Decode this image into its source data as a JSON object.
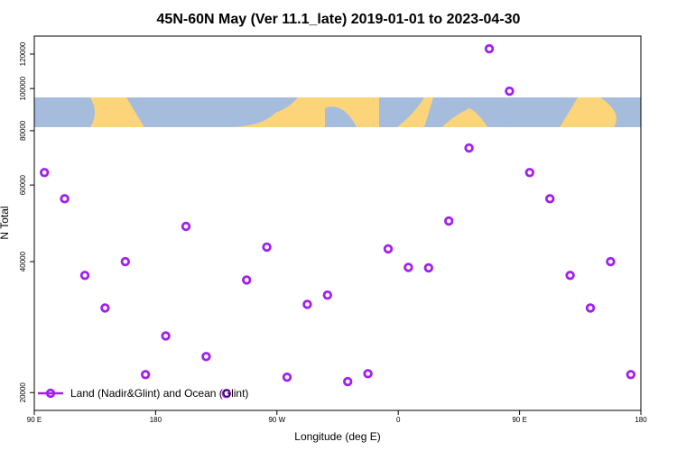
{
  "chart_data": {
    "type": "scatter",
    "title": "45N-60N May (Ver 11.1_late)   2019-01-01 to 2023-04-30",
    "x_label": "Longitude (deg E)",
    "y_label": "N Total",
    "log_y": true,
    "legend": "bottom-left",
    "xlim": [
      90,
      540
    ],
    "xticks": [
      {
        "value": 90,
        "label": "90 E"
      },
      {
        "value": 180,
        "label": "180"
      },
      {
        "value": 270,
        "label": "90 W"
      },
      {
        "value": 360,
        "label": "0"
      },
      {
        "value": 450,
        "label": "90 E"
      },
      {
        "value": 540,
        "label": "180"
      }
    ],
    "ylim": [
      18200,
      132000
    ],
    "yticks": [
      20000,
      40000,
      60000,
      80000,
      100000,
      120000
    ],
    "series": [
      {
        "name": "Land (Nadir&Glint) and Ocean (Glint)",
        "color": "#a020f0",
        "x": [
          97.5,
          112.5,
          127.5,
          142.5,
          157.5,
          172.5,
          187.5,
          202.5,
          217.5,
          232.5,
          247.5,
          262.5,
          277.5,
          292.5,
          307.5,
          322.5,
          337.5,
          352.5,
          367.5,
          382.5,
          397.5,
          412.5,
          427.5,
          442.5,
          457.5,
          472.5,
          487.5,
          502.5,
          517.5,
          532.5
        ],
        "values": [
          64100,
          55800,
          37200,
          31300,
          40000,
          22000,
          27000,
          48200,
          24200,
          19900,
          36300,
          43200,
          21700,
          31900,
          33500,
          21200,
          22100,
          42800,
          38800,
          38700,
          49600,
          73000,
          123400,
          98600,
          64100,
          55800,
          37200,
          31300,
          40000,
          22000
        ]
      }
    ]
  }
}
